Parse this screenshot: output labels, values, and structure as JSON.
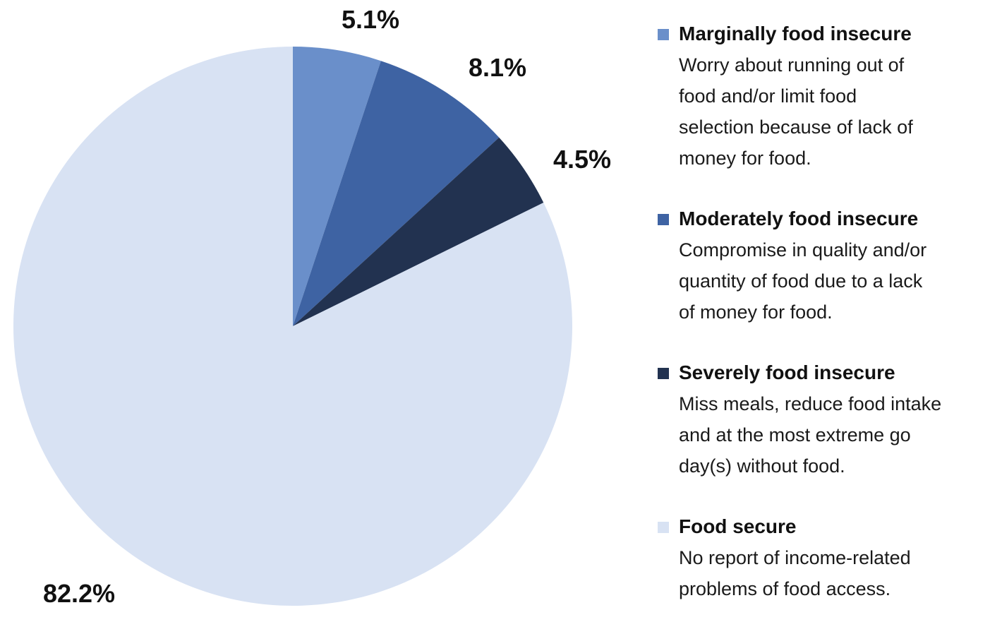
{
  "chart_data": {
    "type": "pie",
    "title": "",
    "slices": [
      {
        "name": "Marginally food insecure",
        "value": 5.1,
        "label": "5.1%",
        "color": "#6a8fca",
        "description": "Worry about running out of food and/or limit food selection because of lack of money for food."
      },
      {
        "name": "Moderately food insecure",
        "value": 8.1,
        "label": "8.1%",
        "color": "#3e63a3",
        "description": "Compromise in quality and/or quantity of food due to a lack of money for food."
      },
      {
        "name": "Severely food insecure",
        "value": 4.5,
        "label": "4.5%",
        "color": "#223250",
        "description": "Miss meals, reduce food intake and at the most extreme go day(s) without food."
      },
      {
        "name": "Food secure",
        "value": 82.2,
        "label": "82.2%",
        "color": "#d8e2f3",
        "description": "No report of income-related problems of food access."
      }
    ],
    "legend_position": "right"
  },
  "legend": {
    "entries": [
      {
        "title": "Marginally food insecure",
        "lines": [
          "Worry about running out of",
          "food and/or limit food",
          "selection because of lack of",
          "money for food."
        ]
      },
      {
        "title": "Moderately food insecure",
        "lines": [
          "Compromise in quality and/or",
          "quantity of food due to a lack",
          "of money for food."
        ]
      },
      {
        "title": "Severely food insecure",
        "lines": [
          "Miss meals, reduce food intake",
          "and at the most extreme go",
          "day(s) without food."
        ]
      },
      {
        "title": "Food secure",
        "lines": [
          "No report of income-related",
          "problems of food access."
        ]
      }
    ]
  }
}
